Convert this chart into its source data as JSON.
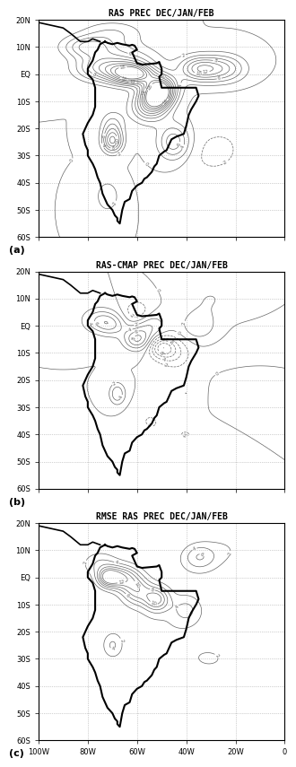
{
  "titles": [
    "RAS PREC DEC/JAN/FEB",
    "RAS-CMAP PREC DEC/JAN/FEB",
    "RMSE RAS PREC DEC/JAN/FEB"
  ],
  "panel_labels": [
    "(a)",
    "(b)",
    "(c)"
  ],
  "lon_min": -100,
  "lon_max": 0,
  "lat_min": -60,
  "lat_max": 20,
  "lon_ticks": [
    -100,
    -80,
    -60,
    -40,
    -20,
    0
  ],
  "lat_ticks": [
    20,
    10,
    0,
    -10,
    -20,
    -30,
    -40,
    -50,
    -60
  ],
  "lon_labels": [
    "100W",
    "80W",
    "60W",
    "40W",
    "20W",
    "0"
  ],
  "lat_labels": [
    "20N",
    "10N",
    "EQ",
    "10S",
    "20S",
    "30S",
    "40S",
    "50S",
    "60S"
  ],
  "contour_color_light": "#888888",
  "contour_color_land": "#000000",
  "background_color": "#ffffff",
  "title_fontsize": 7,
  "tick_fontsize": 6,
  "label_fontsize": 8
}
